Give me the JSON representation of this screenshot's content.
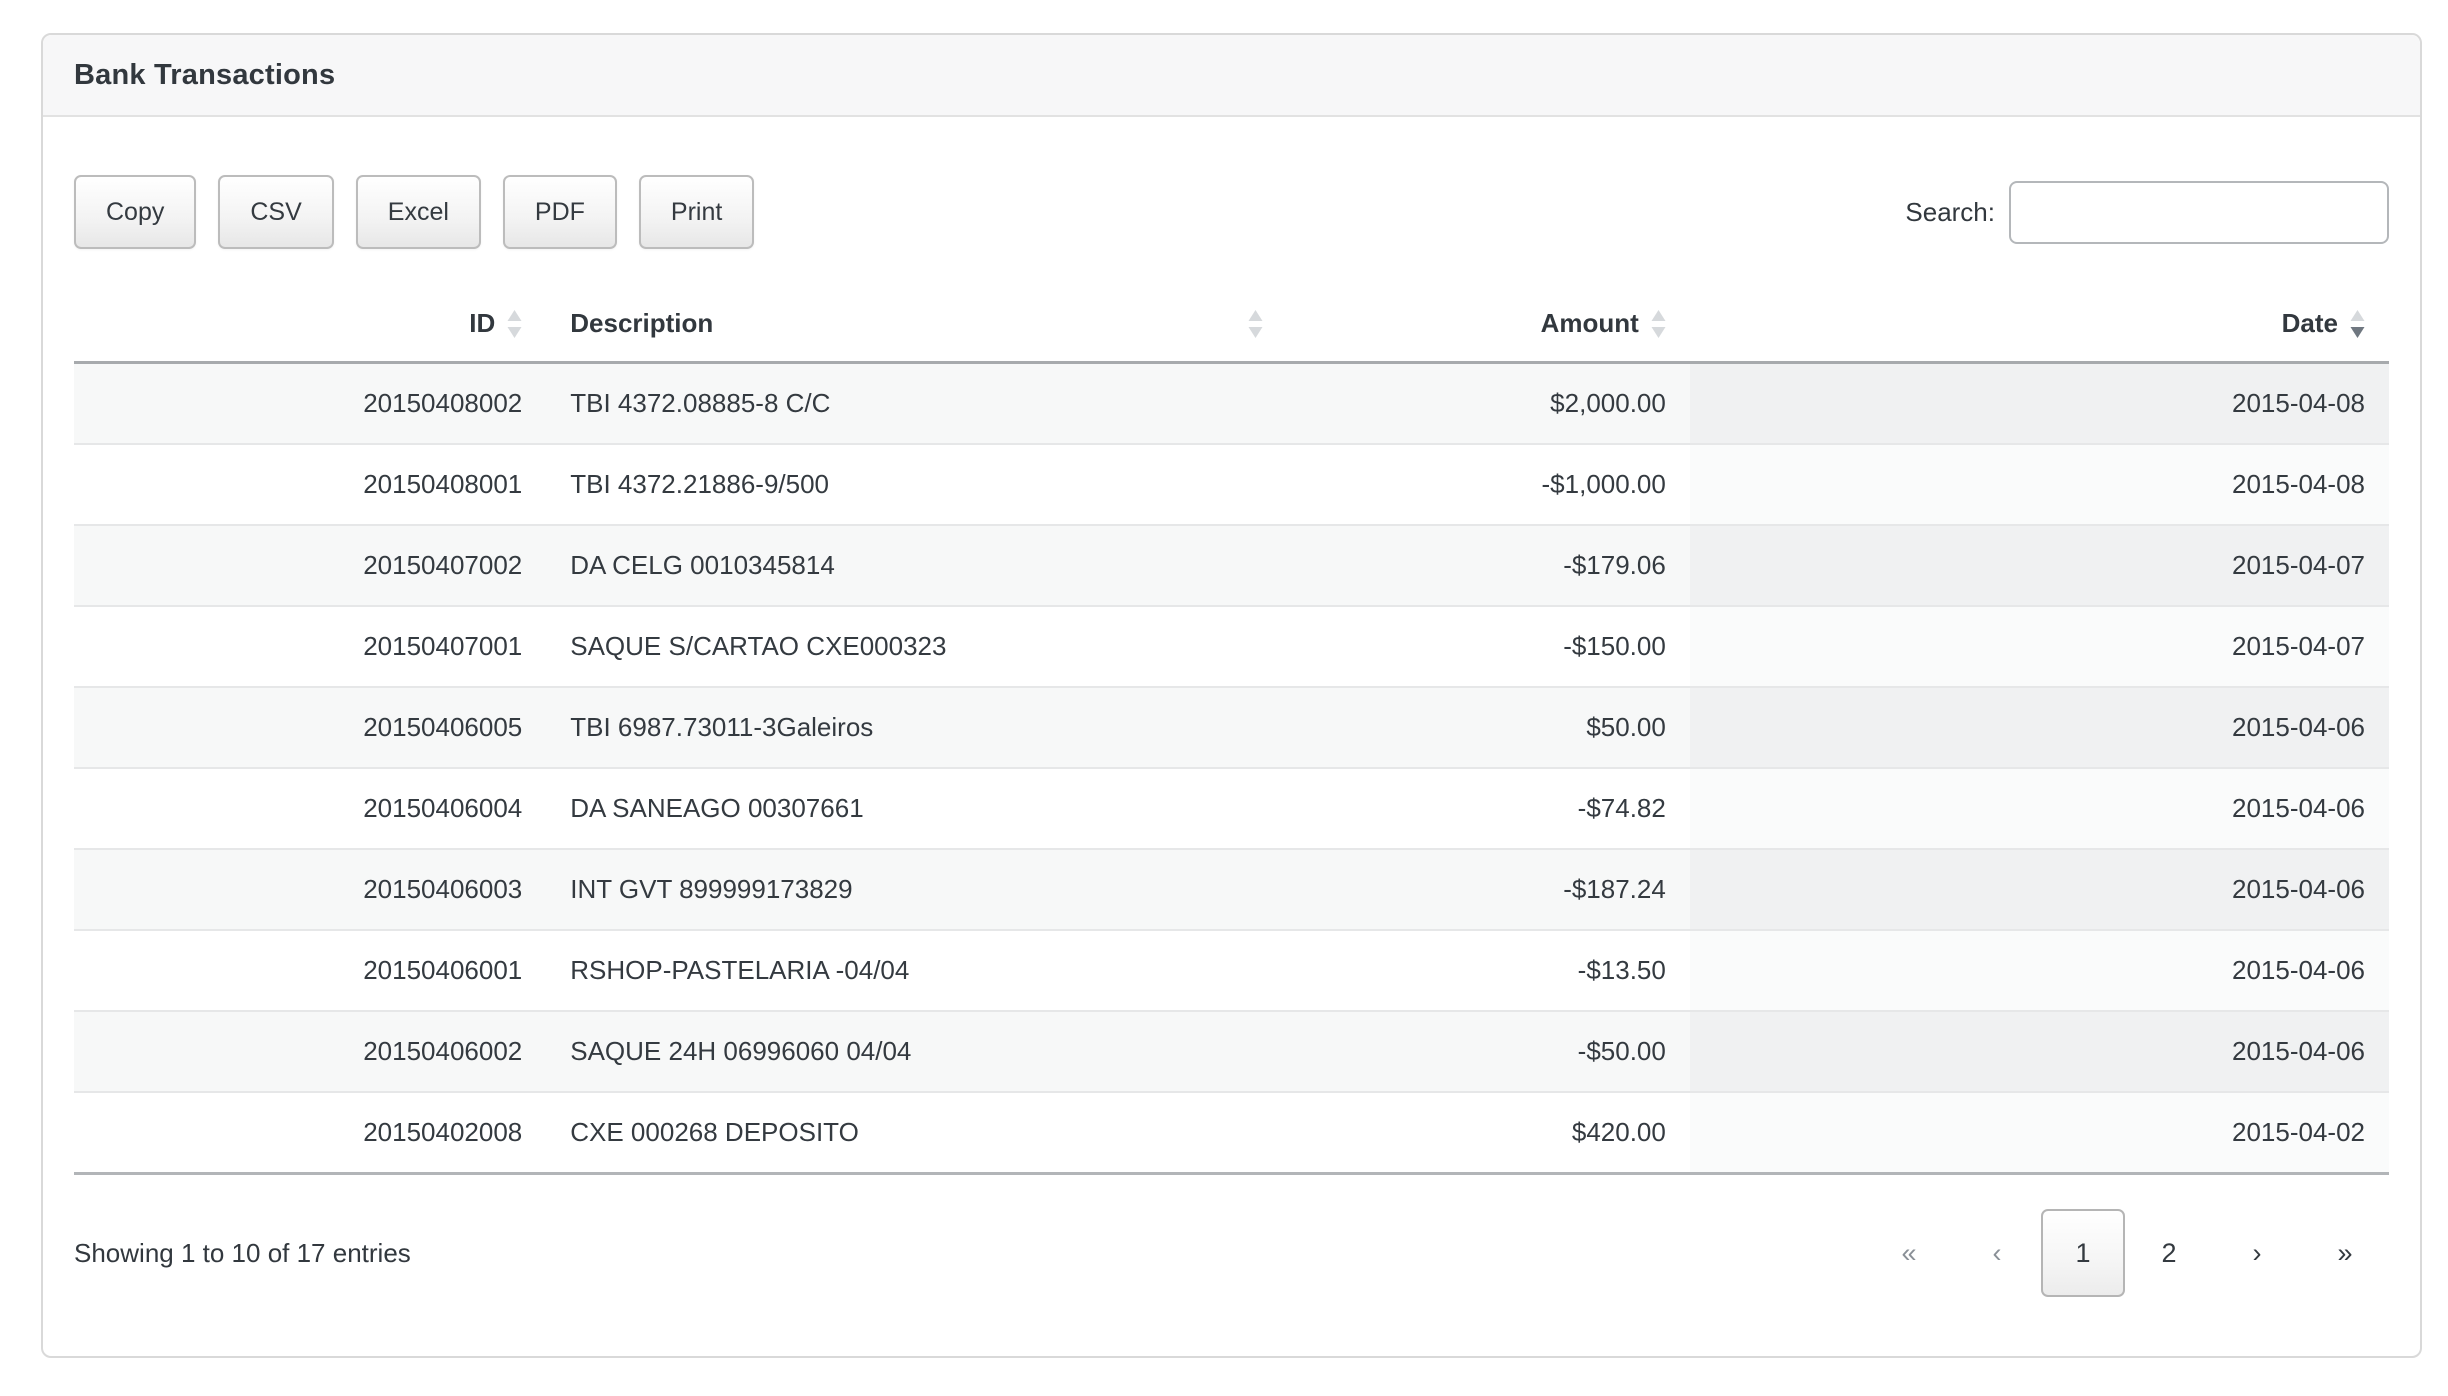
{
  "panel": {
    "title": "Bank Transactions"
  },
  "toolbar": {
    "buttons": [
      "Copy",
      "CSV",
      "Excel",
      "PDF",
      "Print"
    ],
    "search_label": "Search:",
    "search_value": "",
    "search_placeholder": ""
  },
  "table": {
    "columns": [
      {
        "label": "ID",
        "align": "right",
        "sorted": "none"
      },
      {
        "label": "Description",
        "align": "left",
        "sorted": "none"
      },
      {
        "label": "Amount",
        "align": "right",
        "sorted": "none"
      },
      {
        "label": "Date",
        "align": "right",
        "sorted": "desc"
      }
    ],
    "rows": [
      {
        "id": "20150408002",
        "description": "TBI 4372.08885-8 C/C",
        "amount": "$2,000.00",
        "date": "2015-04-08"
      },
      {
        "id": "20150408001",
        "description": "TBI 4372.21886-9/500",
        "amount": "-$1,000.00",
        "date": "2015-04-08"
      },
      {
        "id": "20150407002",
        "description": "DA CELG 0010345814",
        "amount": "-$179.06",
        "date": "2015-04-07"
      },
      {
        "id": "20150407001",
        "description": "SAQUE S/CARTAO CXE000323",
        "amount": "-$150.00",
        "date": "2015-04-07"
      },
      {
        "id": "20150406005",
        "description": "TBI 6987.73011-3Galeiros",
        "amount": "$50.00",
        "date": "2015-04-06"
      },
      {
        "id": "20150406004",
        "description": "DA SANEAGO 00307661",
        "amount": "-$74.82",
        "date": "2015-04-06"
      },
      {
        "id": "20150406003",
        "description": "INT GVT 899999173829",
        "amount": "-$187.24",
        "date": "2015-04-06"
      },
      {
        "id": "20150406001",
        "description": "RSHOP-PASTELARIA -04/04",
        "amount": "-$13.50",
        "date": "2015-04-06"
      },
      {
        "id": "20150406002",
        "description": "SAQUE 24H 06996060 04/04",
        "amount": "-$50.00",
        "date": "2015-04-06"
      },
      {
        "id": "20150402008",
        "description": "CXE 000268 DEPOSITO",
        "amount": "$420.00",
        "date": "2015-04-02"
      }
    ]
  },
  "footer": {
    "info": "Showing 1 to 10 of 17 entries",
    "pagination": [
      {
        "name": "first",
        "label": "«",
        "state": "disabled"
      },
      {
        "name": "previous",
        "label": "‹",
        "state": "disabled"
      },
      {
        "name": "page-1",
        "label": "1",
        "state": "active"
      },
      {
        "name": "page-2",
        "label": "2",
        "state": "normal"
      },
      {
        "name": "next",
        "label": "›",
        "state": "normal"
      },
      {
        "name": "last",
        "label": "»",
        "state": "normal"
      }
    ]
  },
  "colors": {
    "text": "#343a40",
    "muted": "#8a9097",
    "sort_inactive": "#d6d9dc",
    "sort_active": "#6f7780",
    "stripe": "#f7f8f8"
  }
}
